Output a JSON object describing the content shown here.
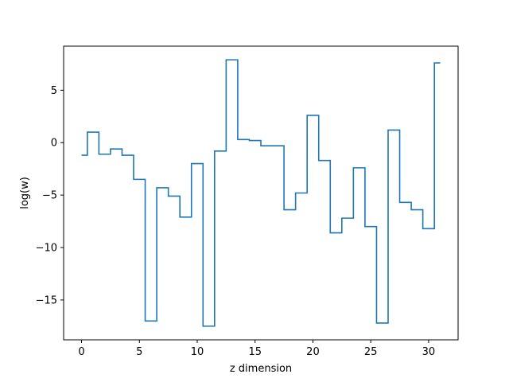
{
  "chart_data": {
    "type": "line",
    "drawstyle": "steps-mid",
    "title": "",
    "xlabel": "z dimension",
    "ylabel": "log(w)",
    "xlim": [
      -1.55,
      32.55
    ],
    "ylim": [
      -18.8,
      9.2
    ],
    "grid": false,
    "legend": "none",
    "x_ticks": [
      0,
      5,
      10,
      15,
      20,
      25,
      30
    ],
    "x_tick_labels": [
      "0",
      "5",
      "10",
      "15",
      "20",
      "25",
      "30"
    ],
    "y_ticks": [
      5,
      0,
      -5,
      -10,
      -15
    ],
    "y_tick_labels": [
      "5",
      "0",
      "−5",
      "−10",
      "−15"
    ],
    "line_color": "#1f77b4",
    "series": [
      {
        "x": [
          0,
          1,
          2,
          3,
          4,
          5,
          6,
          7,
          8,
          9,
          10,
          11,
          12,
          13,
          14,
          15,
          16,
          17,
          18,
          19,
          20,
          21,
          22,
          23,
          24,
          25,
          26,
          27,
          28,
          29,
          30,
          31
        ],
        "values": [
          -1.2,
          1.0,
          -1.1,
          -0.6,
          -1.2,
          -3.5,
          -17.0,
          -4.3,
          -5.1,
          -7.1,
          -2.0,
          -17.5,
          -0.8,
          7.9,
          0.3,
          0.2,
          -0.3,
          -0.3,
          -6.4,
          -4.8,
          2.6,
          -1.7,
          -8.6,
          -7.2,
          -2.4,
          -8.0,
          -17.2,
          1.2,
          -5.7,
          -6.4,
          -8.2,
          7.6
        ]
      }
    ]
  }
}
